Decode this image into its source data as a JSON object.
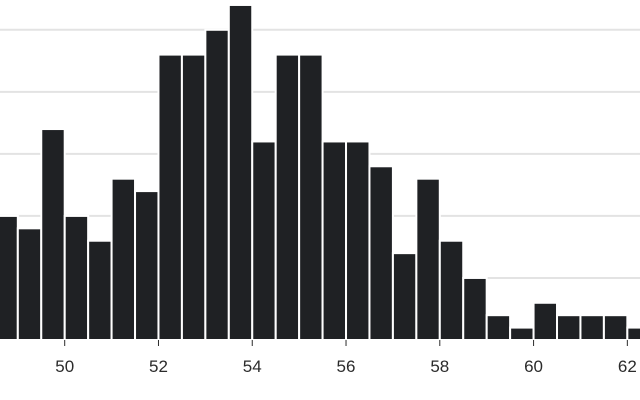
{
  "chart_data": {
    "type": "bar",
    "bin_width": 0.5,
    "bins_start": [
      48.5,
      49,
      49.5,
      50,
      50.5,
      51,
      51.5,
      52,
      52.5,
      53,
      53.5,
      54,
      54.5,
      55,
      55.5,
      56,
      56.5,
      57,
      57.5,
      58,
      58.5,
      59,
      59.5,
      60,
      60.5,
      61,
      61.5,
      62
    ],
    "values": [
      10,
      9,
      17,
      10,
      8,
      13,
      12,
      23,
      23,
      25,
      27,
      16,
      23,
      23,
      16,
      16,
      14,
      7,
      13,
      8,
      5,
      2,
      1,
      3,
      2,
      2,
      2,
      1
    ],
    "xlim": [
      48.62,
      62.27
    ],
    "ylim": [
      0,
      27.4
    ],
    "x_ticks": [
      "50",
      "52",
      "54",
      "56",
      "58",
      "60",
      "62"
    ],
    "grid": true,
    "colors": {
      "bar": "#1f2124",
      "grid": "#e3e3e3",
      "text": "#2b2b2b"
    }
  }
}
